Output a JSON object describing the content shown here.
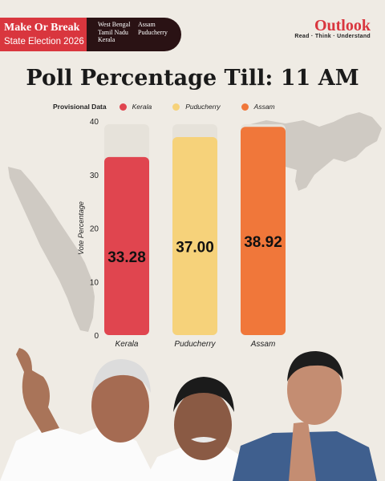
{
  "header": {
    "series_title": "Make Or Break",
    "series_subtitle": "State Election 2026",
    "states_col1": [
      "West Bengal",
      "Tamil Nadu",
      "Kerala"
    ],
    "states_col2": [
      "Assam",
      "Puducherry"
    ]
  },
  "logo": {
    "name": "Outlook",
    "tagline": "Read · Think · Understand"
  },
  "title": "Poll Percentage Till: 11 AM",
  "legend": {
    "label": "Provisional Data"
  },
  "colors": {
    "accent": "#d9363e",
    "kerala": "#e0454f",
    "puducherry": "#f6d27a",
    "assam": "#f0773a",
    "background": "#efebe4"
  },
  "chart_data": {
    "type": "bar",
    "categories": [
      "Kerala",
      "Puducherry",
      "Assam"
    ],
    "values": [
      33.28,
      37.0,
      38.92
    ],
    "value_labels": [
      "33.28",
      "37.00",
      "38.92"
    ],
    "colors": [
      "#e0454f",
      "#f6d27a",
      "#f0773a"
    ],
    "title": "Poll Percentage Till: 11 AM",
    "xlabel": "",
    "ylabel": "Vote Percentage",
    "ylim": [
      0,
      40
    ],
    "yticks": [
      0,
      10,
      20,
      30,
      40
    ],
    "grid": false,
    "legend_position": "top"
  }
}
